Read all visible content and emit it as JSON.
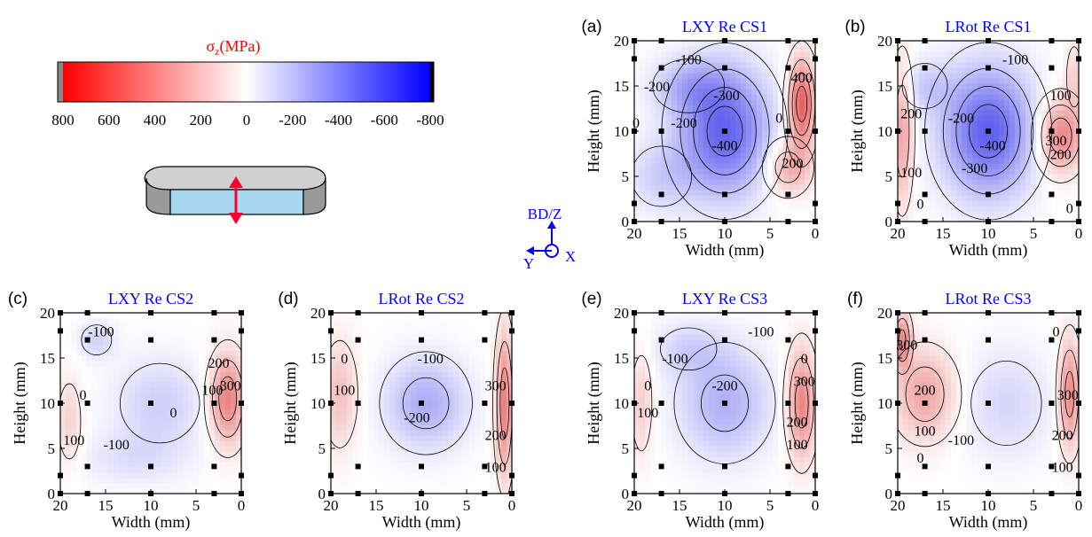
{
  "colorbar": {
    "label": "σ",
    "label_sub": "z",
    "label_unit": "(MPa)",
    "ticks": [
      "800",
      "600",
      "400",
      "200",
      "0",
      "-200",
      "-400",
      "-600",
      "-800"
    ],
    "min": -800,
    "max": 800,
    "colors": {
      "tension": "#ff0000",
      "zero": "#ffffff",
      "compression": "#0000ff",
      "label": "#ff0000"
    }
  },
  "axes_icon": {
    "up": "BD/Z",
    "left": "Y",
    "right": "X",
    "color": "#0000ff"
  },
  "contour_colors": {
    "positive": "#e0504a",
    "negative": "#5a5ae6",
    "title": "#0000ff"
  },
  "chart_data": [
    {
      "type": "heatmap",
      "panel": "(a)",
      "title": "LXY Re CS1",
      "xlabel": "Width (mm)",
      "ylabel": "Height (mm)",
      "xlim": [
        20,
        0
      ],
      "ylim": [
        0,
        20
      ],
      "xticks": [
        "20",
        "15",
        "10",
        "5",
        "0"
      ],
      "yticks": [
        "0",
        "5",
        "10",
        "15",
        "20"
      ],
      "measurement_points": [
        [
          20,
          20
        ],
        [
          17,
          20
        ],
        [
          10,
          20
        ],
        [
          3,
          20
        ],
        [
          0,
          20
        ],
        [
          20,
          18
        ],
        [
          17,
          17
        ],
        [
          10,
          17
        ],
        [
          3,
          17
        ],
        [
          0,
          18
        ],
        [
          20,
          10
        ],
        [
          17,
          10
        ],
        [
          10,
          10
        ],
        [
          3,
          10
        ],
        [
          0,
          10
        ],
        [
          20,
          2
        ],
        [
          17,
          3
        ],
        [
          10,
          3
        ],
        [
          3,
          3
        ],
        [
          0,
          2
        ],
        [
          20,
          0
        ],
        [
          17,
          0
        ],
        [
          10,
          0
        ],
        [
          3,
          0
        ],
        [
          0,
          0
        ]
      ],
      "blobs": [
        [
          10,
          10,
          -420,
          5,
          7
        ],
        [
          14,
          15,
          -160,
          4,
          3
        ],
        [
          1.5,
          13,
          420,
          1.5,
          5
        ],
        [
          3,
          6,
          220,
          2.5,
          3
        ],
        [
          17,
          5,
          -120,
          4,
          4
        ]
      ],
      "contour_labels": [
        [
          "-100",
          14,
          18
        ],
        [
          "-200",
          17.5,
          15
        ],
        [
          "-300",
          9.8,
          14
        ],
        [
          "0",
          19.8,
          11
        ],
        [
          "-200",
          14.5,
          11
        ],
        [
          "-400",
          10,
          8.5
        ],
        [
          "0",
          4,
          11.5
        ],
        [
          "400",
          1.5,
          16
        ],
        [
          "200",
          2.5,
          6.5
        ]
      ]
    },
    {
      "type": "heatmap",
      "panel": "(b)",
      "title": "LRot Re CS1",
      "xlabel": "Width (mm)",
      "ylabel": "Height (mm)",
      "xlim": [
        20,
        0
      ],
      "ylim": [
        0,
        20
      ],
      "xticks": [
        "20",
        "15",
        "10",
        "5",
        "0"
      ],
      "yticks": [
        "0",
        "5",
        "10",
        "15",
        "20"
      ],
      "measurement_points": [
        [
          20,
          20
        ],
        [
          17,
          20
        ],
        [
          10,
          20
        ],
        [
          3,
          20
        ],
        [
          0,
          20
        ],
        [
          20,
          18
        ],
        [
          17,
          17
        ],
        [
          10,
          17
        ],
        [
          3,
          17
        ],
        [
          0,
          18
        ],
        [
          20,
          10
        ],
        [
          17,
          10
        ],
        [
          10,
          10
        ],
        [
          3,
          10
        ],
        [
          0,
          10
        ],
        [
          20,
          2
        ],
        [
          17,
          3
        ],
        [
          10,
          3
        ],
        [
          3,
          3
        ],
        [
          0,
          2
        ],
        [
          20,
          0
        ],
        [
          17,
          0
        ],
        [
          10,
          0
        ],
        [
          3,
          0
        ],
        [
          0,
          0
        ]
      ],
      "blobs": [
        [
          10,
          10,
          -430,
          5,
          7
        ],
        [
          19.5,
          10,
          240,
          1.2,
          8
        ],
        [
          2,
          9.5,
          330,
          2.5,
          4
        ],
        [
          0.5,
          16,
          120,
          1,
          4
        ],
        [
          17,
          15,
          -120,
          3,
          3
        ]
      ],
      "contour_labels": [
        [
          "-100",
          7,
          18
        ],
        [
          "200",
          18.5,
          12
        ],
        [
          "-200",
          13,
          11.5
        ],
        [
          "100",
          2,
          14
        ],
        [
          "-400",
          9.5,
          8.5
        ],
        [
          "300",
          2.5,
          9
        ],
        [
          "200",
          2,
          7.5
        ],
        [
          "100",
          18.5,
          5.5
        ],
        [
          "-300",
          11.5,
          6
        ],
        [
          "0",
          17.5,
          2
        ],
        [
          "0",
          1,
          1.5
        ]
      ]
    },
    {
      "type": "heatmap",
      "panel": "(c)",
      "title": "LXY Re CS2",
      "xlabel": "Width (mm)",
      "ylabel": "Height (mm)",
      "xlim": [
        20,
        0
      ],
      "ylim": [
        0,
        20
      ],
      "xticks": [
        "20",
        "15",
        "10",
        "5",
        "0"
      ],
      "yticks": [
        "0",
        "5",
        "10",
        "15",
        "20"
      ],
      "measurement_points": [
        [
          20,
          20
        ],
        [
          17,
          20
        ],
        [
          10,
          20
        ],
        [
          3,
          20
        ],
        [
          0,
          20
        ],
        [
          20,
          18
        ],
        [
          17,
          17
        ],
        [
          10,
          17
        ],
        [
          3,
          17
        ],
        [
          0,
          18
        ],
        [
          20,
          10
        ],
        [
          17,
          10
        ],
        [
          10,
          10
        ],
        [
          3,
          10
        ],
        [
          0,
          10
        ],
        [
          20,
          2
        ],
        [
          17,
          3
        ],
        [
          10,
          3
        ],
        [
          3,
          3
        ],
        [
          0,
          2
        ],
        [
          20,
          0
        ],
        [
          17,
          0
        ],
        [
          10,
          0
        ],
        [
          3,
          0
        ],
        [
          0,
          0
        ]
      ],
      "blobs": [
        [
          9,
          10,
          -130,
          5,
          5
        ],
        [
          16,
          17,
          -120,
          2,
          2
        ],
        [
          1.5,
          10.5,
          330,
          2,
          5
        ],
        [
          19,
          8,
          120,
          1.5,
          5
        ],
        [
          12,
          4,
          -80,
          6,
          3
        ]
      ],
      "contour_labels": [
        [
          "-100",
          15.5,
          18
        ],
        [
          "200",
          2.5,
          14.5
        ],
        [
          "300",
          1.2,
          12
        ],
        [
          "0",
          17.5,
          11
        ],
        [
          "100",
          3.2,
          11.5
        ],
        [
          "0",
          7.5,
          9
        ],
        [
          "100",
          18.5,
          6
        ],
        [
          "-100",
          13.8,
          5.5
        ]
      ]
    },
    {
      "type": "heatmap",
      "panel": "(d)",
      "title": "LRot Re CS2",
      "xlabel": "Width (mm)",
      "ylabel": "Height (mm)",
      "xlim": [
        20,
        0
      ],
      "ylim": [
        0,
        20
      ],
      "xticks": [
        "20",
        "15",
        "10",
        "5",
        "0"
      ],
      "yticks": [
        "0",
        "5",
        "10",
        "15",
        "20"
      ],
      "measurement_points": [
        [
          20,
          20
        ],
        [
          17,
          20
        ],
        [
          10,
          20
        ],
        [
          3,
          20
        ],
        [
          0,
          20
        ],
        [
          20,
          18
        ],
        [
          17,
          17
        ],
        [
          10,
          17
        ],
        [
          3,
          17
        ],
        [
          0,
          18
        ],
        [
          20,
          10
        ],
        [
          17,
          10
        ],
        [
          10,
          10
        ],
        [
          3,
          10
        ],
        [
          0,
          10
        ],
        [
          20,
          2
        ],
        [
          17,
          3
        ],
        [
          10,
          3
        ],
        [
          3,
          3
        ],
        [
          0,
          2
        ],
        [
          20,
          0
        ],
        [
          17,
          0
        ],
        [
          10,
          0
        ],
        [
          3,
          0
        ],
        [
          0,
          0
        ]
      ],
      "blobs": [
        [
          9.5,
          10,
          -220,
          4.5,
          5
        ],
        [
          19,
          11,
          160,
          2,
          6
        ],
        [
          0.8,
          10,
          330,
          1,
          8
        ]
      ],
      "contour_labels": [
        [
          "0",
          18.5,
          15
        ],
        [
          "-100",
          9,
          15
        ],
        [
          "100",
          18.5,
          11.5
        ],
        [
          "300",
          1.8,
          12
        ],
        [
          "-200",
          10.5,
          8.5
        ],
        [
          "200",
          1.8,
          6.5
        ],
        [
          "100",
          1.8,
          3
        ]
      ]
    },
    {
      "type": "heatmap",
      "panel": "(e)",
      "title": "LXY Re CS3",
      "xlabel": "Width (mm)",
      "ylabel": "Height (mm)",
      "xlim": [
        20,
        0
      ],
      "ylim": [
        0,
        20
      ],
      "xticks": [
        "20",
        "15",
        "10",
        "5",
        "0"
      ],
      "yticks": [
        "0",
        "5",
        "10",
        "15",
        "20"
      ],
      "measurement_points": [
        [
          20,
          20
        ],
        [
          17,
          20
        ],
        [
          10,
          20
        ],
        [
          3,
          20
        ],
        [
          0,
          20
        ],
        [
          20,
          18
        ],
        [
          17,
          17
        ],
        [
          10,
          17
        ],
        [
          3,
          17
        ],
        [
          0,
          18
        ],
        [
          20,
          10
        ],
        [
          17,
          10
        ],
        [
          10,
          10
        ],
        [
          3,
          10
        ],
        [
          0,
          10
        ],
        [
          20,
          2
        ],
        [
          17,
          3
        ],
        [
          10,
          3
        ],
        [
          3,
          3
        ],
        [
          0,
          2
        ],
        [
          20,
          0
        ],
        [
          17,
          0
        ],
        [
          10,
          0
        ],
        [
          3,
          0
        ],
        [
          0,
          0
        ]
      ],
      "blobs": [
        [
          10,
          10,
          -210,
          5,
          6
        ],
        [
          19.2,
          10,
          130,
          1.3,
          6
        ],
        [
          1.5,
          10,
          320,
          1.6,
          6
        ],
        [
          14,
          16,
          -110,
          4,
          3
        ]
      ],
      "contour_labels": [
        [
          "-100",
          6,
          18
        ],
        [
          "-100",
          15.5,
          15
        ],
        [
          "0",
          1.2,
          15
        ],
        [
          "300",
          1.2,
          12.5
        ],
        [
          "0",
          18.5,
          12
        ],
        [
          "-200",
          10,
          12
        ],
        [
          "200",
          2,
          8
        ],
        [
          "100",
          18.5,
          9
        ],
        [
          "100",
          2,
          5.5
        ]
      ]
    },
    {
      "type": "heatmap",
      "panel": "(f)",
      "title": "LRot Re CS3",
      "xlabel": "Width (mm)",
      "ylabel": "Height (mm)",
      "xlim": [
        20,
        0
      ],
      "ylim": [
        0,
        20
      ],
      "xticks": [
        "20",
        "15",
        "10",
        "5",
        "0"
      ],
      "yticks": [
        "0",
        "5",
        "10",
        "15",
        "20"
      ],
      "measurement_points": [
        [
          20,
          20
        ],
        [
          17,
          20
        ],
        [
          10,
          20
        ],
        [
          3,
          20
        ],
        [
          0,
          20
        ],
        [
          20,
          18
        ],
        [
          17,
          17
        ],
        [
          10,
          17
        ],
        [
          3,
          17
        ],
        [
          0,
          18
        ],
        [
          20,
          10
        ],
        [
          17,
          10
        ],
        [
          10,
          10
        ],
        [
          3,
          10
        ],
        [
          0,
          10
        ],
        [
          20,
          2
        ],
        [
          17,
          3
        ],
        [
          10,
          3
        ],
        [
          3,
          3
        ],
        [
          0,
          2
        ],
        [
          20,
          0
        ],
        [
          17,
          0
        ],
        [
          10,
          0
        ],
        [
          3,
          0
        ],
        [
          0,
          0
        ]
      ],
      "blobs": [
        [
          17,
          11,
          230,
          3.5,
          5
        ],
        [
          19.5,
          17,
          300,
          1,
          3
        ],
        [
          8,
          10,
          -110,
          5,
          6
        ],
        [
          1,
          11,
          310,
          1.2,
          6
        ]
      ],
      "contour_labels": [
        [
          "300",
          19,
          16.5
        ],
        [
          "0",
          2.5,
          18
        ],
        [
          "200",
          17,
          11.5
        ],
        [
          "300",
          1.2,
          11
        ],
        [
          "100",
          17,
          7
        ],
        [
          "-100",
          13,
          6
        ],
        [
          "200",
          1.8,
          6.5
        ],
        [
          "0",
          17.5,
          4
        ],
        [
          "100",
          1.8,
          3
        ]
      ]
    }
  ]
}
